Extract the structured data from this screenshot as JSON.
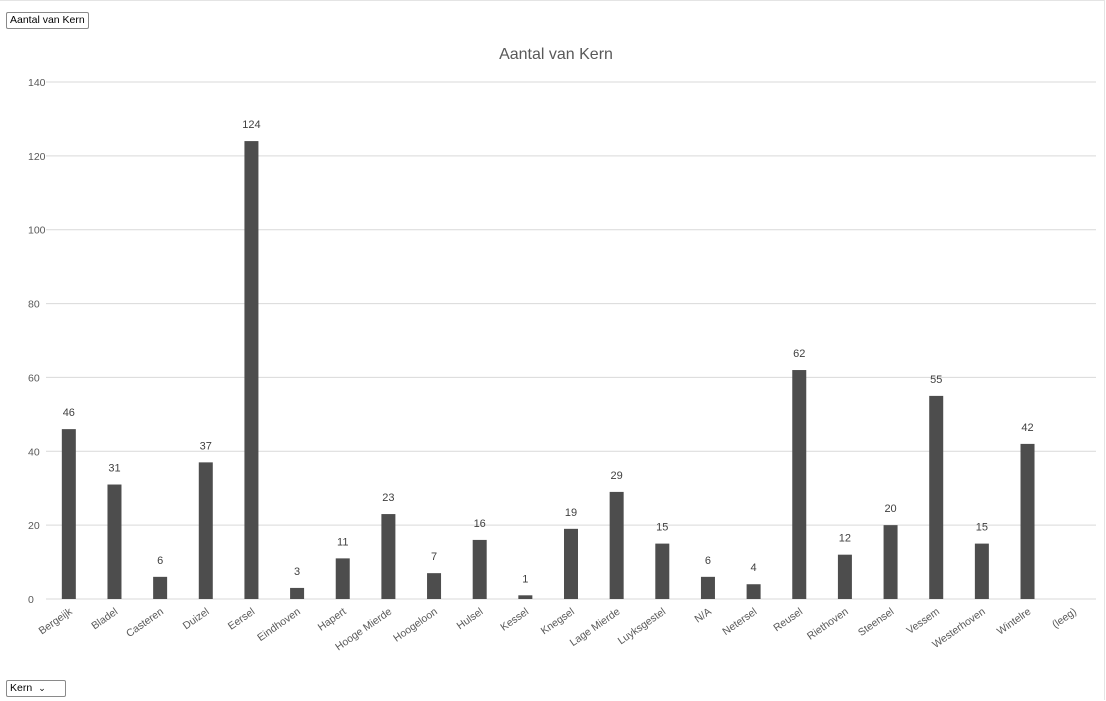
{
  "field_button": {
    "label": "Aantal van Kern"
  },
  "axis_field": {
    "label": "Kern"
  },
  "colors": {
    "bar": "#4d4d4d",
    "grid": "#d9d9d9",
    "text": "#595959"
  },
  "icons": {
    "dropdown": "chevron-down-icon"
  },
  "chart_data": {
    "type": "bar",
    "title": "Aantal van Kern",
    "xlabel": "",
    "ylabel": "",
    "ylim": [
      0,
      140
    ],
    "yticks": [
      0,
      20,
      40,
      60,
      80,
      100,
      120,
      140
    ],
    "grid": true,
    "legend": "none",
    "categories": [
      "Bergeijk",
      "Bladel",
      "Casteren",
      "Duizel",
      "Eersel",
      "Eindhoven",
      "Hapert",
      "Hooge Mierde",
      "Hoogeloon",
      "Hulsel",
      "Kessel",
      "Knegsel",
      "Lage Mierde",
      "Luyksgestel",
      "N/A",
      "Netersel",
      "Reusel",
      "Riethoven",
      "Steensel",
      "Vessem",
      "Westerhoven",
      "Wintelre",
      "(leeg)"
    ],
    "values": [
      46,
      31,
      6,
      37,
      124,
      3,
      11,
      23,
      7,
      16,
      1,
      19,
      29,
      15,
      6,
      4,
      62,
      12,
      20,
      55,
      15,
      42,
      null
    ],
    "data_labels": [
      "46",
      "31",
      "6",
      "37",
      "124",
      "3",
      "11",
      "23",
      "7",
      "16",
      "1",
      "19",
      "29",
      "15",
      "6",
      "4",
      "62",
      "12",
      "20",
      "55",
      "15",
      "42",
      ""
    ]
  }
}
